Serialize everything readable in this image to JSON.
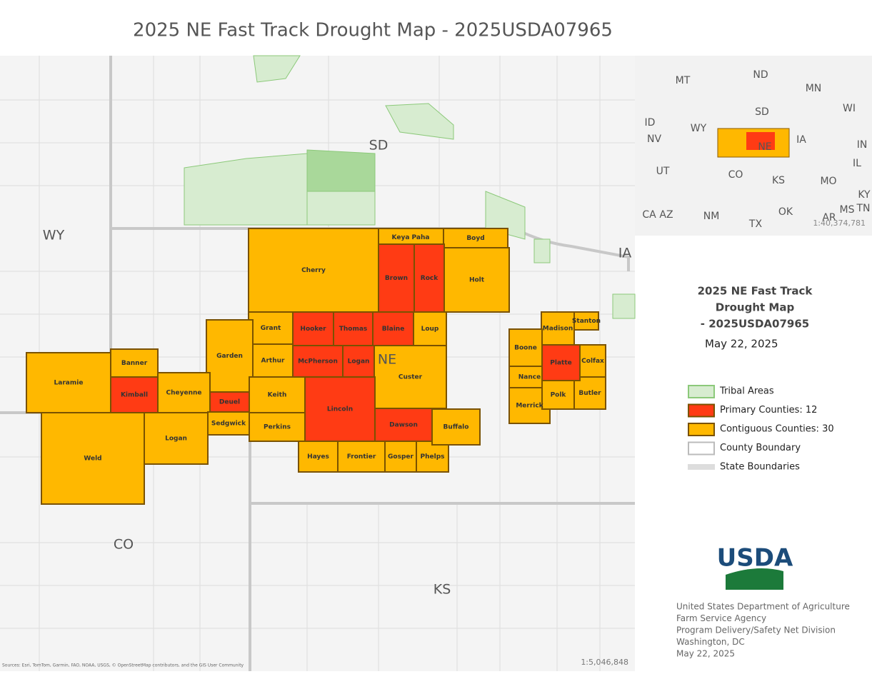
{
  "header": {
    "title": "2025 NE Fast Track Drought Map - 2025USDA07965"
  },
  "map": {
    "state_labels": [
      "WY",
      "SD",
      "IA",
      "NE",
      "CO",
      "KS"
    ],
    "primary_counties": [
      "Brown",
      "Rock",
      "Hooker",
      "Thomas",
      "Blaine",
      "McPherson",
      "Logan",
      "Kimball",
      "Deuel",
      "Lincoln",
      "Dawson",
      "Platte"
    ],
    "contiguous_counties": [
      "Keya Paha",
      "Boyd",
      "Cherry",
      "Holt",
      "Grant",
      "Loup",
      "Garden",
      "Arthur",
      "Custer",
      "Banner",
      "Laramie",
      "Cheyenne",
      "Keith",
      "Sedgwick",
      "Perkins",
      "Weld",
      "Logan",
      "Hayes",
      "Frontier",
      "Gosper",
      "Phelps",
      "Buffalo",
      "Madison",
      "Stanton",
      "Boone",
      "Colfax",
      "Nance",
      "Merrick",
      "Polk",
      "Butler"
    ],
    "scale": "1:5,046,848",
    "attribution": "Sources: Esri, TomTom, Garmin, FAO, NOAA, USGS, © OpenStreetMap contributors, and the GIS User Community"
  },
  "inset": {
    "state_labels": [
      "MT",
      "ND",
      "MN",
      "WI",
      "SD",
      "ID",
      "WY",
      "NV",
      "IA",
      "IN",
      "NE",
      "UT",
      "CO",
      "IL",
      "KS",
      "MO",
      "KY",
      "CA",
      "AZ",
      "NM",
      "OK",
      "AR",
      "MS",
      "TN",
      "TX"
    ],
    "scale": "1:40,374,781"
  },
  "side_panel": {
    "title_lines": [
      "2025 NE Fast Track",
      "Drought Map",
      "- 2025USDA07965"
    ],
    "date": "May 22, 2025"
  },
  "legend": {
    "items": [
      "Tribal Areas",
      "Primary Counties: 12",
      "Contiguous Counties: 30",
      "County Boundary",
      "State Boundaries"
    ]
  },
  "logo": {
    "text": "USDA"
  },
  "footer": {
    "lines": [
      "United States Department of Agriculture",
      "Farm Service Agency",
      "Program Delivery/Safety Net Division",
      "Washington, DC",
      "May 22, 2025"
    ]
  }
}
